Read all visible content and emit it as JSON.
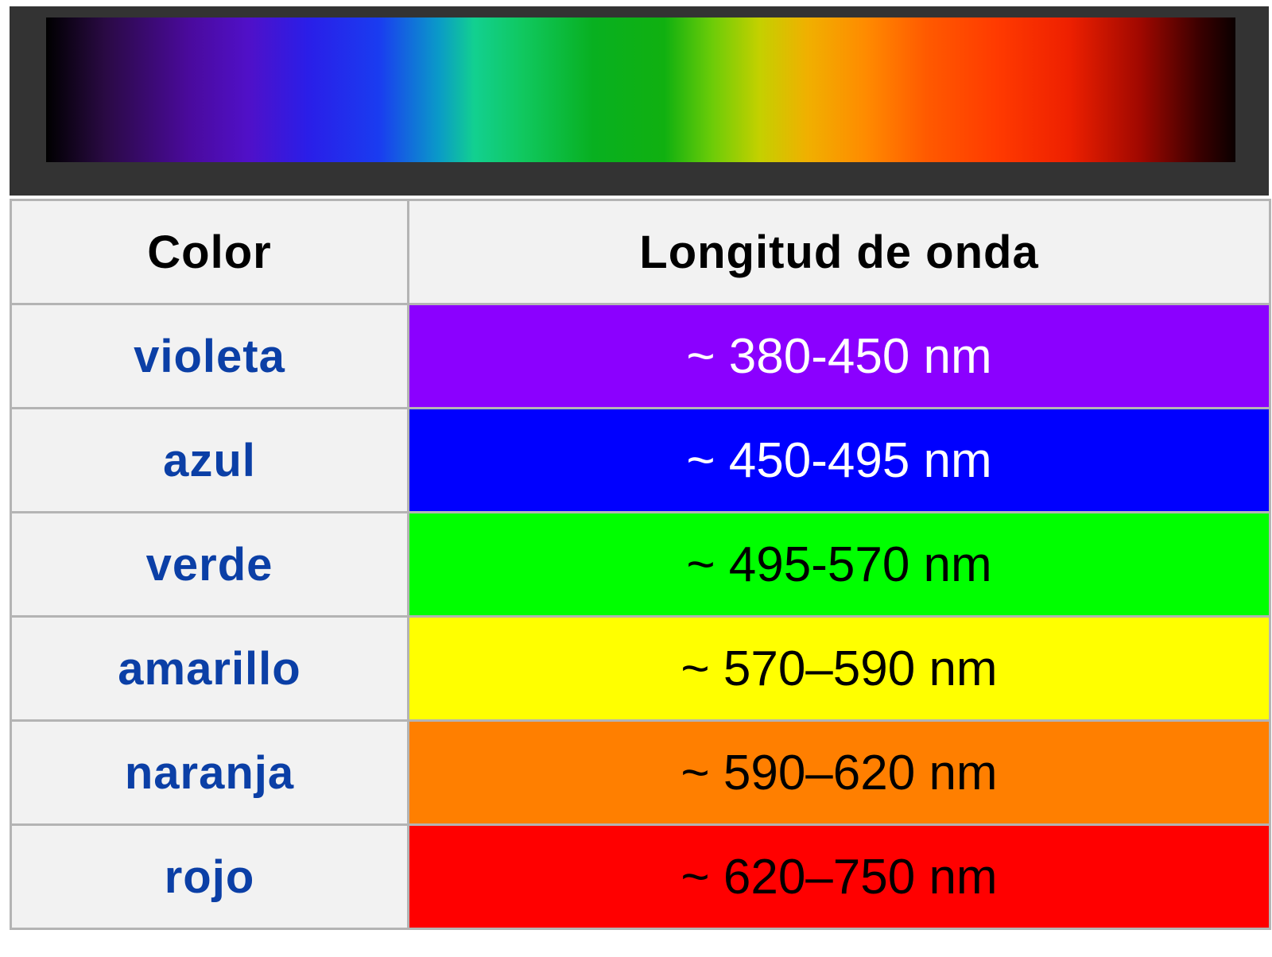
{
  "header": {
    "col_color": "Color",
    "col_wavelength": "Longitud de onda"
  },
  "link_color": "#0b3fa6",
  "rows": [
    {
      "name": "violeta",
      "wavelength": "~ 380-450 nm",
      "bg": "#8b00ff",
      "text_color": "#ffffff"
    },
    {
      "name": "azul",
      "wavelength": "~ 450-495 nm",
      "bg": "#0000ff",
      "text_color": "#ffffff"
    },
    {
      "name": "verde",
      "wavelength": "~ 495-570 nm",
      "bg": "#00ff00",
      "text_color": "#000000"
    },
    {
      "name": "amarillo",
      "wavelength": "~ 570–590 nm",
      "bg": "#ffff00",
      "text_color": "#000000"
    },
    {
      "name": "naranja",
      "wavelength": "~ 590–620 nm",
      "bg": "#ff7f00",
      "text_color": "#000000"
    },
    {
      "name": "rojo",
      "wavelength": "~ 620–750 nm",
      "bg": "#ff0000",
      "text_color": "#000000"
    }
  ]
}
